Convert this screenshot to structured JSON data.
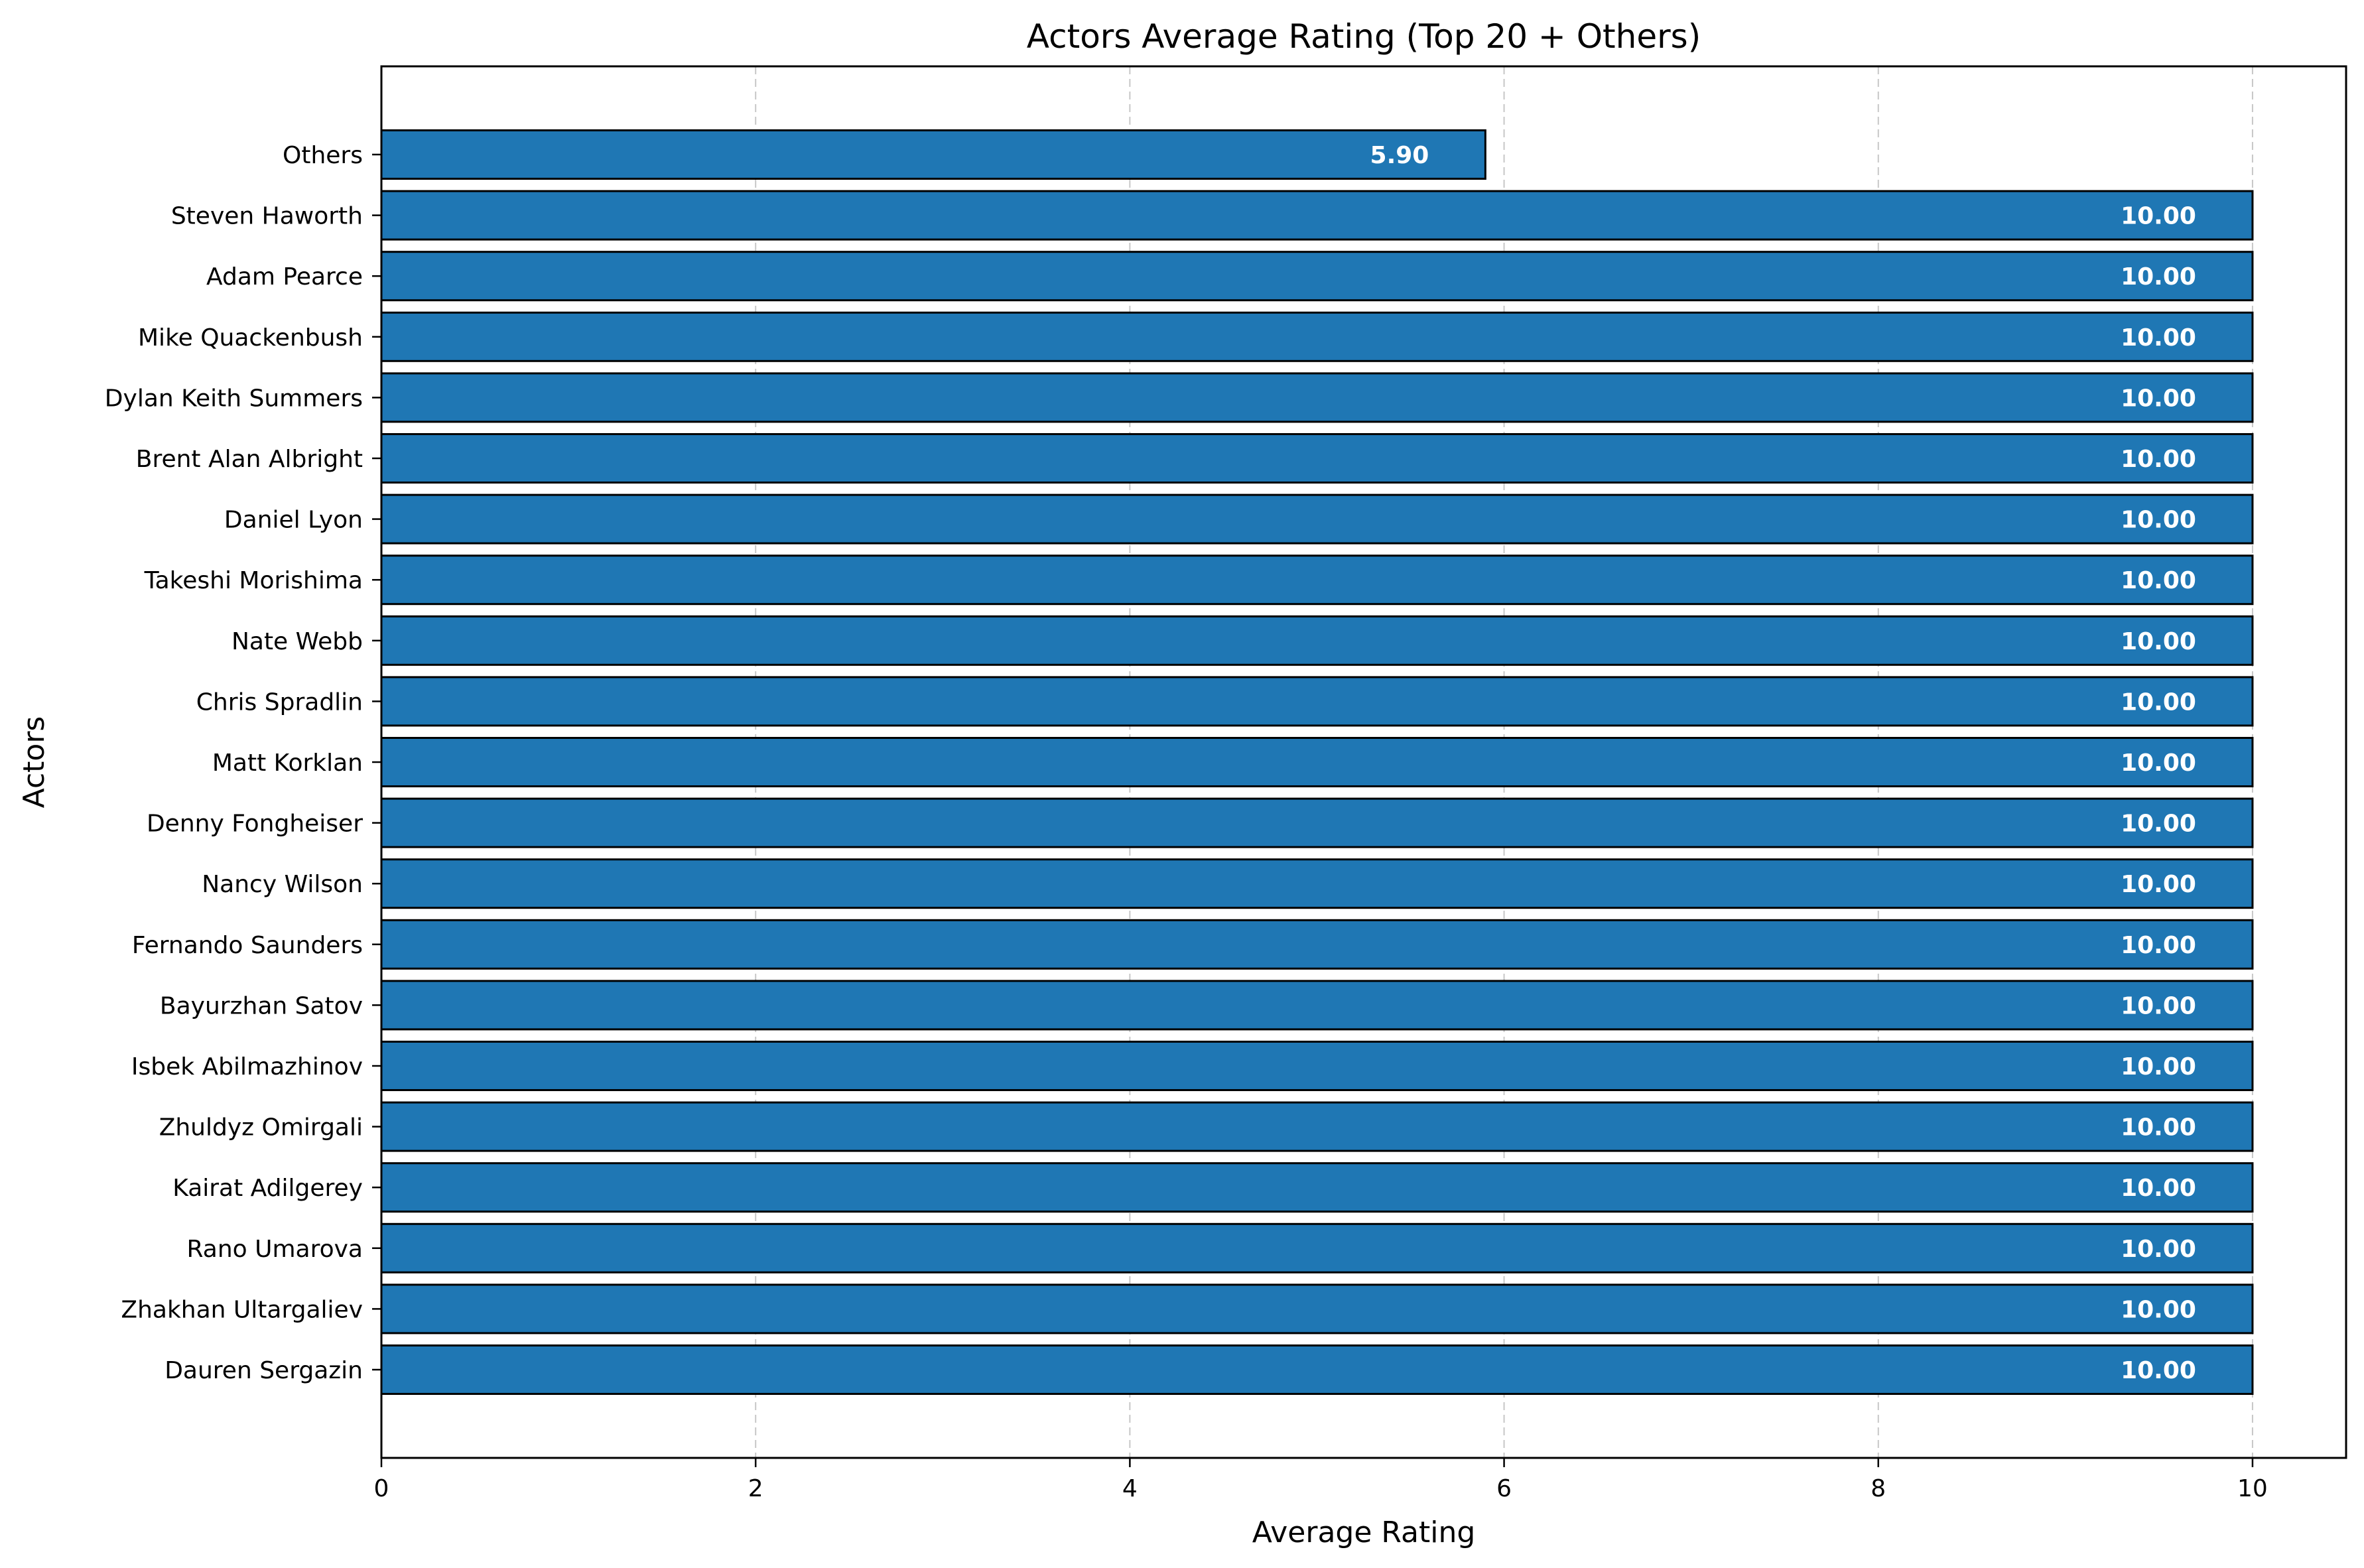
{
  "chart_data": {
    "type": "bar",
    "orientation": "horizontal",
    "title": "Actors Average Rating (Top 20 + Others)",
    "xlabel": "Average Rating",
    "ylabel": "Actors",
    "xlim": [
      0,
      10.5
    ],
    "xticks": [
      0,
      2,
      4,
      6,
      8,
      10
    ],
    "grid": "x, dashed",
    "bar_color": "#1f77b4",
    "bar_edge_color": "#000000",
    "label_color": "#ffffff",
    "categories": [
      "Others",
      "Steven Haworth",
      "Adam Pearce",
      "Mike Quackenbush",
      "Dylan Keith Summers",
      "Brent Alan Albright",
      "Daniel Lyon",
      "Takeshi Morishima",
      "Nate Webb",
      "Chris Spradlin",
      "Matt Korklan",
      "Denny Fongheiser",
      "Nancy Wilson",
      "Fernando Saunders",
      "Bayurzhan Satov",
      "Isbek Abilmazhinov",
      "Zhuldyz Omirgali",
      "Kairat Adilgerey",
      "Rano Umarova",
      "Zhakhan Ultargaliev",
      "Dauren Sergazin"
    ],
    "values": [
      5.9,
      10,
      10,
      10,
      10,
      10,
      10,
      10,
      10,
      10,
      10,
      10,
      10,
      10,
      10,
      10,
      10,
      10,
      10,
      10,
      10
    ],
    "value_labels": [
      "5.90",
      "10.00",
      "10.00",
      "10.00",
      "10.00",
      "10.00",
      "10.00",
      "10.00",
      "10.00",
      "10.00",
      "10.00",
      "10.00",
      "10.00",
      "10.00",
      "10.00",
      "10.00",
      "10.00",
      "10.00",
      "10.00",
      "10.00",
      "10.00"
    ]
  }
}
